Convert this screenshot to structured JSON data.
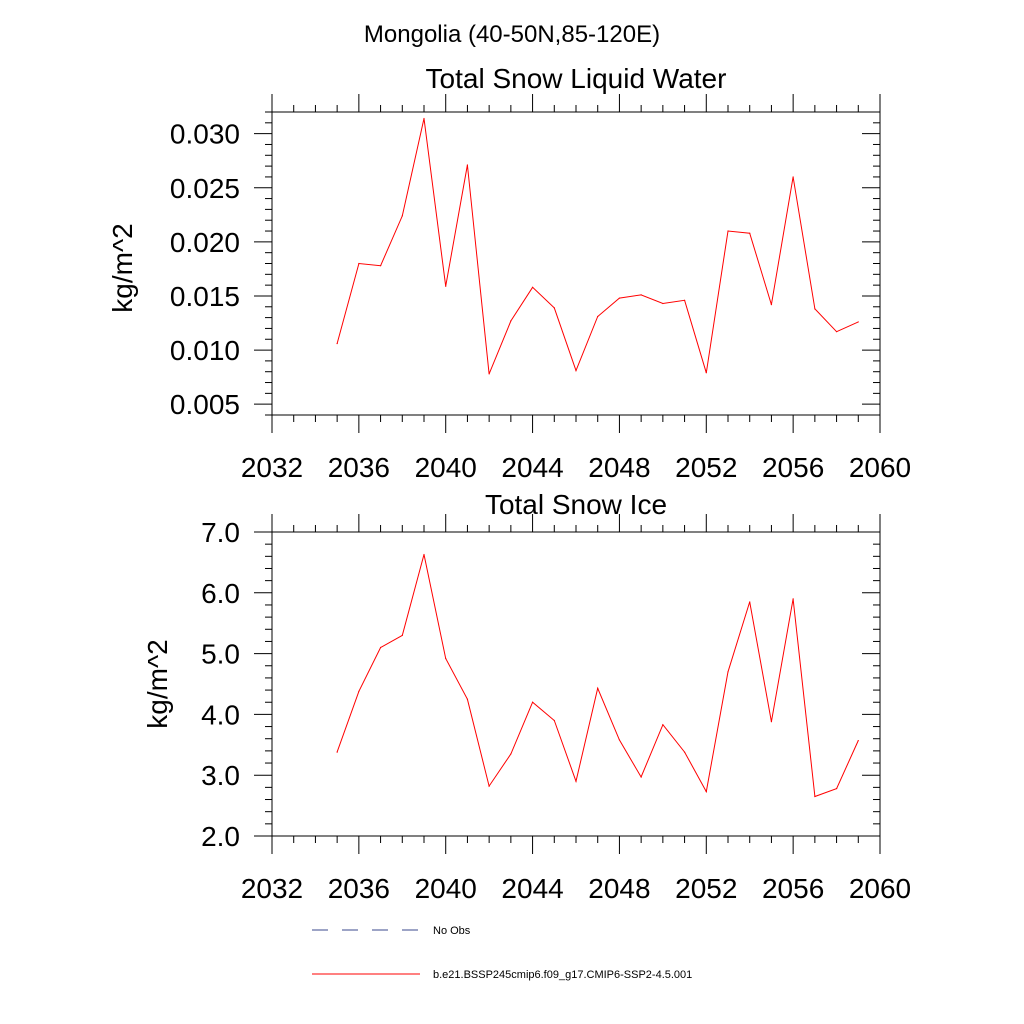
{
  "figure": {
    "suptitle": "Mongolia (40-50N,85-120E)"
  },
  "legend": {
    "items": [
      {
        "label": "No Obs",
        "style": "dashed",
        "color": "#3b4a8c"
      },
      {
        "label": "b.e21.BSSP245cmip6.f09_g17.CMIP6-SSP2-4.5.001",
        "style": "solid",
        "color": "#ff0000"
      }
    ]
  },
  "chart_data": [
    {
      "type": "line",
      "title": "Total Snow Liquid Water",
      "ylabel": "kg/m^2",
      "xlabel": "",
      "xlim": [
        2032,
        2060
      ],
      "ylim": [
        0.004,
        0.032
      ],
      "xticks": [
        2032,
        2036,
        2040,
        2044,
        2048,
        2052,
        2056,
        2060
      ],
      "xtick_labels": [
        "2032",
        "2036",
        "2040",
        "2044",
        "2048",
        "2052",
        "2056",
        "2060"
      ],
      "yticks": [
        0.005,
        0.01,
        0.015,
        0.02,
        0.025,
        0.03
      ],
      "ytick_labels": [
        "0.005",
        "0.010",
        "0.015",
        "0.020",
        "0.025",
        "0.030"
      ],
      "grid": false,
      "series": [
        {
          "name": "b.e21.BSSP245cmip6.f09_g17.CMIP6-SSP2-4.5.001",
          "color": "#ff0000",
          "x": [
            2035,
            2036,
            2037,
            2038,
            2039,
            2040,
            2041,
            2042,
            2043,
            2044,
            2045,
            2046,
            2047,
            2048,
            2049,
            2050,
            2051,
            2052,
            2053,
            2054,
            2055,
            2056,
            2057,
            2058,
            2059
          ],
          "y": [
            0.0106,
            0.018,
            0.0178,
            0.0224,
            0.0314,
            0.0159,
            0.0271,
            0.0078,
            0.0127,
            0.0158,
            0.0139,
            0.0081,
            0.0131,
            0.0148,
            0.0151,
            0.0143,
            0.0146,
            0.0079,
            0.021,
            0.0208,
            0.0142,
            0.026,
            0.0138,
            0.0117,
            0.0126
          ]
        }
      ]
    },
    {
      "type": "line",
      "title": "Total Snow Ice",
      "ylabel": "kg/m^2",
      "xlabel": "",
      "xlim": [
        2032,
        2060
      ],
      "ylim": [
        2.0,
        7.0
      ],
      "xticks": [
        2032,
        2036,
        2040,
        2044,
        2048,
        2052,
        2056,
        2060
      ],
      "xtick_labels": [
        "2032",
        "2036",
        "2040",
        "2044",
        "2048",
        "2052",
        "2056",
        "2060"
      ],
      "yticks": [
        2.0,
        3.0,
        4.0,
        5.0,
        6.0,
        7.0
      ],
      "ytick_labels": [
        "2.0",
        "3.0",
        "4.0",
        "5.0",
        "6.0",
        "7.0"
      ],
      "grid": false,
      "series": [
        {
          "name": "b.e21.BSSP245cmip6.f09_g17.CMIP6-SSP2-4.5.001",
          "color": "#ff0000",
          "x": [
            2035,
            2036,
            2037,
            2038,
            2039,
            2040,
            2041,
            2042,
            2043,
            2044,
            2045,
            2046,
            2047,
            2048,
            2049,
            2050,
            2051,
            2052,
            2053,
            2054,
            2055,
            2056,
            2057,
            2058,
            2059
          ],
          "y": [
            3.38,
            4.38,
            5.1,
            5.3,
            6.63,
            4.92,
            4.25,
            2.82,
            3.35,
            4.2,
            3.9,
            2.9,
            4.43,
            3.58,
            2.97,
            3.83,
            3.38,
            2.73,
            4.7,
            5.85,
            3.88,
            5.9,
            2.65,
            2.78,
            3.57
          ]
        }
      ]
    }
  ]
}
